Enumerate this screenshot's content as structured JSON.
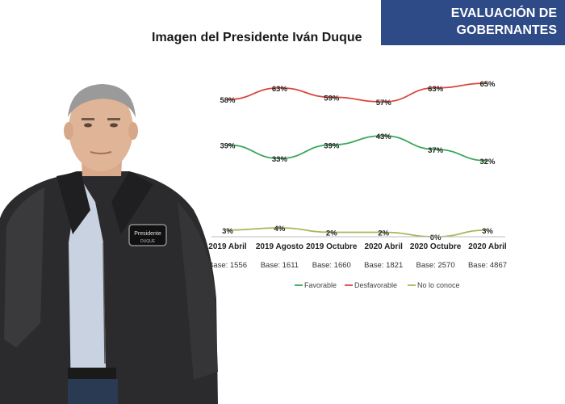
{
  "header": {
    "banner_line1": "EVALUACIÓN DE",
    "banner_line2": "GOBERNANTES",
    "title": "Imagen del Presidente Iván Duque"
  },
  "photo": {
    "jacket_patch_line1": "Presidente",
    "jacket_patch_line2": "DUQUE"
  },
  "chart_data": {
    "type": "line",
    "categories": [
      "2019 Abril",
      "2019 Agosto",
      "2019 Octubre",
      "2020 Abril",
      "2020 Octubre",
      "2020 Abril"
    ],
    "bases": [
      "Base: 1556",
      "Base: 1611",
      "Base: 1660",
      "Base: 1821",
      "Base: 2570",
      "Base: 4867"
    ],
    "series": [
      {
        "name": "Favorable",
        "color": "#3aa95c",
        "values": [
          39,
          33,
          39,
          43,
          37,
          32
        ]
      },
      {
        "name": "Desfavorable",
        "color": "#d9473c",
        "values": [
          58,
          63,
          59,
          57,
          63,
          65
        ]
      },
      {
        "name": "No lo conoce",
        "color": "#a8b85a",
        "values": [
          3,
          4,
          2,
          2,
          0,
          3
        ]
      }
    ],
    "value_suffix": "%",
    "title": "Imagen del Presidente Iván Duque",
    "xlabel": "",
    "ylabel": "",
    "ylim": [
      0,
      70
    ],
    "grid": false,
    "legend": "bottom"
  }
}
